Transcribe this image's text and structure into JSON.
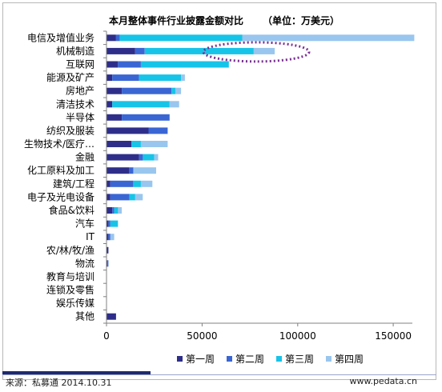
{
  "chart_data": {
    "type": "bar",
    "orientation": "horizontal",
    "stacked": true,
    "title": "本月整体事件行业披露金额对比",
    "unit": "（单位：万美元）",
    "categories": [
      "电信及增值业务",
      "机械制造",
      "互联网",
      "能源及矿产",
      "房地产",
      "清洁技术",
      "半导体",
      "纺织及服装",
      "生物技术/医疗…",
      "金融",
      "化工原料及加工",
      "建筑/工程",
      "电子及光电设备",
      "食品&饮料",
      "汽车",
      "IT",
      "农/林/牧/渔",
      "物流",
      "教育与培训",
      "连锁及零售",
      "娱乐传媒",
      "其他"
    ],
    "series": [
      {
        "name": "第一周",
        "color": "#2e2e8a",
        "values": [
          5000,
          15000,
          6000,
          3000,
          8000,
          3000,
          8000,
          22000,
          13000,
          17000,
          12000,
          2000,
          2000,
          3000,
          1000,
          1000,
          1000,
          500,
          0,
          0,
          0,
          5000
        ]
      },
      {
        "name": "第二周",
        "color": "#3a66d4",
        "values": [
          2000,
          5000,
          12000,
          14000,
          26000,
          0,
          25000,
          10000,
          0,
          2000,
          2000,
          12000,
          10000,
          1000,
          1000,
          1000,
          0,
          500,
          0,
          0,
          0,
          0
        ]
      },
      {
        "name": "第三周",
        "color": "#16c4e8",
        "values": [
          64000,
          57000,
          46000,
          22000,
          2000,
          30000,
          0,
          0,
          5000,
          6000,
          0,
          4000,
          3000,
          2000,
          4000,
          0,
          0,
          0,
          0,
          0,
          0,
          0
        ]
      },
      {
        "name": "第四周",
        "color": "#99c6ee",
        "values": [
          90000,
          11000,
          0,
          2000,
          3000,
          5000,
          0,
          0,
          14000,
          2000,
          12000,
          6000,
          4000,
          2000,
          0,
          2000,
          0,
          0,
          0,
          0,
          0,
          0
        ]
      }
    ],
    "xlim": [
      0,
      160000
    ],
    "xticks": [
      "0",
      "50000",
      "100000",
      "150000"
    ],
    "grid": false,
    "legend_position": "bottom",
    "annotation": "dashed ellipse highlighting 机械制造 bar",
    "highlight_color": "#7a2d95"
  },
  "footer": {
    "source": "来源：私募通   2014.10.31",
    "site": "www.pedata.cn"
  }
}
